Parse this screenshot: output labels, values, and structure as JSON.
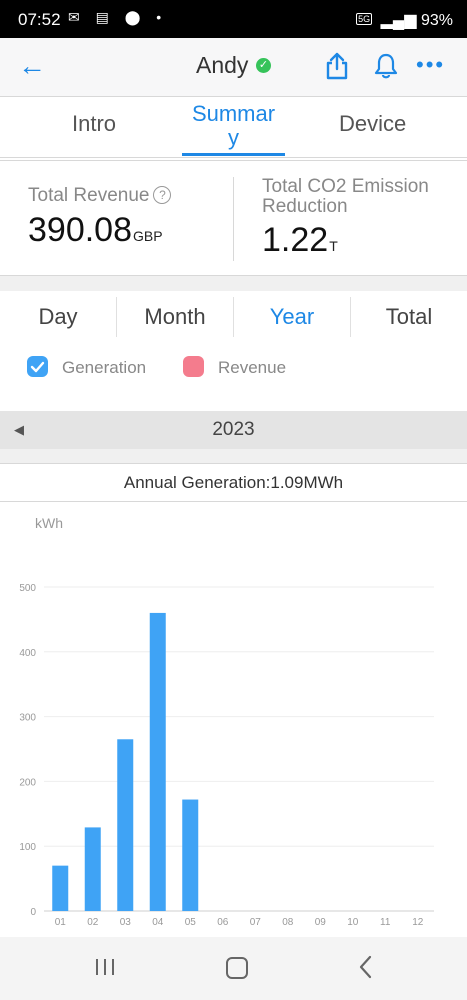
{
  "status_bar": {
    "time": "07:52",
    "network": "5G",
    "battery": "93%"
  },
  "header": {
    "title": "Andy"
  },
  "tabs": [
    {
      "label": "Intro"
    },
    {
      "label": "Summar\ny",
      "active": true
    },
    {
      "label": "Device"
    }
  ],
  "metrics": {
    "revenue": {
      "label": "Total Revenue",
      "value": "390.08",
      "unit": "GBP"
    },
    "co2": {
      "label": "Total CO2 Emission Reduction",
      "value": "1.22",
      "unit": "T"
    }
  },
  "periods": [
    {
      "label": "Day"
    },
    {
      "label": "Month"
    },
    {
      "label": "Year",
      "active": true
    },
    {
      "label": "Total"
    }
  ],
  "legend": [
    {
      "label": "Generation",
      "color": "#3fa3f5",
      "checked": true
    },
    {
      "label": "Revenue",
      "color": "#f47c8d",
      "checked": false
    }
  ],
  "year_selector": {
    "year": "2023"
  },
  "annual_generation": "Annual Generation:1.09MWh",
  "chart_data": {
    "type": "bar",
    "ylabel": "kWh",
    "categories": [
      "01",
      "02",
      "03",
      "04",
      "05",
      "06",
      "07",
      "08",
      "09",
      "10",
      "11",
      "12"
    ],
    "values": [
      70,
      129,
      265,
      460,
      172,
      0,
      0,
      0,
      0,
      0,
      0,
      0
    ],
    "yticks": [
      0,
      100,
      200,
      300,
      400,
      500
    ],
    "ylim": [
      0,
      500
    ],
    "grid": true,
    "bar_color": "#3fa3f5"
  },
  "colors": {
    "accent": "#1e88e5",
    "verified": "#36c35a"
  }
}
